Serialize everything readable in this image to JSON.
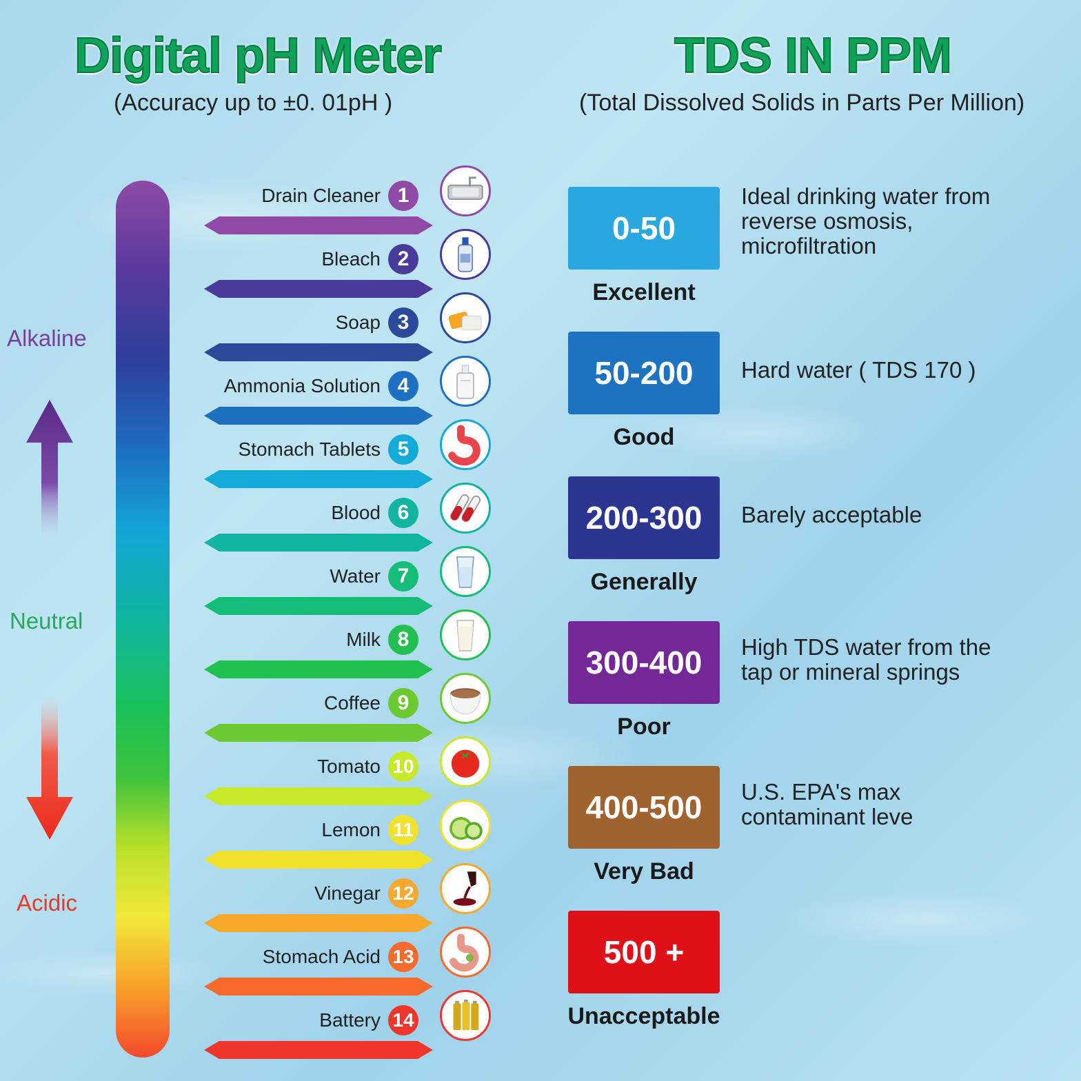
{
  "ph": {
    "title": "Digital pH Meter",
    "subtitle": "(Accuracy up to  ±0. 01pH )",
    "side_labels": {
      "alkaline": "Alkaline",
      "neutral": "Neutral",
      "acidic": "Acidic"
    },
    "side_colors": {
      "alkaline": "#7a3f9a",
      "neutral": "#2aa85a",
      "acidic": "#e83a2a"
    },
    "items": [
      {
        "num": "1",
        "label": "Drain Cleaner",
        "color": "#8e4aa6",
        "icon": "sink-icon"
      },
      {
        "num": "2",
        "label": "Bleach",
        "color": "#4a3a9a",
        "icon": "bleach-bottle-icon"
      },
      {
        "num": "3",
        "label": "Soap",
        "color": "#2c4a9c",
        "icon": "soap-bar-icon"
      },
      {
        "num": "4",
        "label": "Ammonia Solution",
        "color": "#1e70c0",
        "icon": "ammonia-bottle-icon"
      },
      {
        "num": "5",
        "label": "Stomach Tablets",
        "color": "#13aad8",
        "icon": "stomach-icon"
      },
      {
        "num": "6",
        "label": "Blood",
        "color": "#10b4a0",
        "icon": "blood-tube-icon"
      },
      {
        "num": "7",
        "label": "Water",
        "color": "#14bc78",
        "icon": "water-glass-icon"
      },
      {
        "num": "8",
        "label": "Milk",
        "color": "#22c050",
        "icon": "milk-glass-icon"
      },
      {
        "num": "9",
        "label": "Coffee",
        "color": "#6cca30",
        "icon": "coffee-cup-icon"
      },
      {
        "num": "10",
        "label": "Tomato",
        "color": "#c8e82a",
        "icon": "tomato-icon"
      },
      {
        "num": "11",
        "label": "Lemon",
        "color": "#f0e22c",
        "icon": "lime-icon"
      },
      {
        "num": "12",
        "label": "Vinegar",
        "color": "#f8a82c",
        "icon": "vinegar-icon"
      },
      {
        "num": "13",
        "label": "Stomach Acid",
        "color": "#f86a2c",
        "icon": "stomach-acid-icon"
      },
      {
        "num": "14",
        "label": "Battery",
        "color": "#f0362c",
        "icon": "battery-icon"
      }
    ]
  },
  "tds": {
    "title": "TDS IN PPM",
    "subtitle": "(Total Dissolved Solids in Parts Per Million)",
    "levels": [
      {
        "range": "0-50",
        "rating": "Excellent",
        "color": "#29a8e0",
        "desc": [
          "Ideal drinking water from",
          "reverse osmosis,",
          "microfiltration"
        ]
      },
      {
        "range": "50-200",
        "rating": "Good",
        "color": "#1e73c0",
        "desc": [
          "Hard water ( TDS 170 )"
        ]
      },
      {
        "range": "200-300",
        "rating": "Generally",
        "color": "#2c3590",
        "desc": [
          "Barely acceptable"
        ]
      },
      {
        "range": "300-400",
        "rating": "Poor",
        "color": "#732896",
        "desc": [
          "High TDS water from the",
          "tap or mineral springs"
        ]
      },
      {
        "range": "400-500",
        "rating": "Very Bad",
        "color": "#a0622e",
        "desc": [
          "U.S. EPA's max",
          "contaminant leve"
        ]
      },
      {
        "range": "500 +",
        "rating": "Unacceptable",
        "color": "#e01018",
        "desc": []
      }
    ]
  }
}
